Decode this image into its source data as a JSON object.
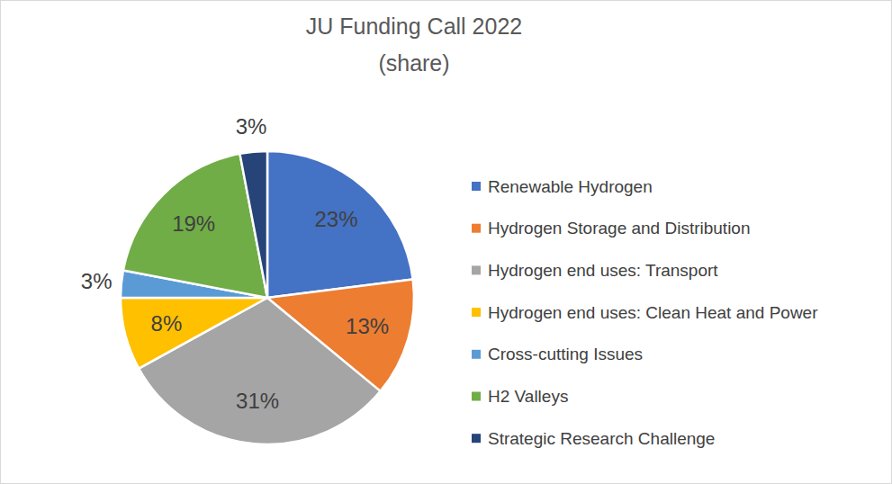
{
  "chart_data": {
    "type": "pie",
    "title": "JU Funding Call 2022",
    "subtitle": "(share)",
    "categories": [
      "Renewable Hydrogen",
      "Hydrogen Storage and Distribution",
      "Hydrogen end uses: Transport",
      "Hydrogen end uses: Clean Heat and Power",
      "Cross-cutting Issues",
      "H2 Valleys",
      "Strategic Research Challenge"
    ],
    "values": [
      23,
      13,
      31,
      8,
      3,
      19,
      3
    ],
    "value_labels": [
      "23%",
      "13%",
      "31%",
      "8%",
      "3%",
      "19%",
      "3%"
    ],
    "colors": [
      "#4472c4",
      "#ed7d31",
      "#a5a5a5",
      "#ffc000",
      "#5b9bd5",
      "#70ad47",
      "#264478"
    ],
    "data_labels": true,
    "legend": "right"
  }
}
